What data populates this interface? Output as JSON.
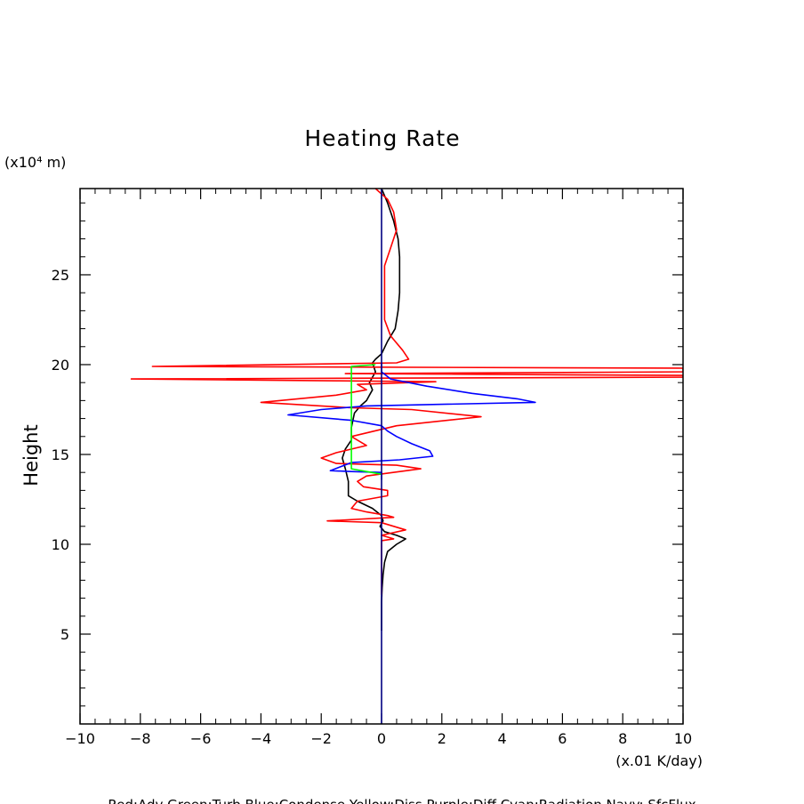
{
  "chart_data": {
    "type": "line",
    "title": "Heating Rate",
    "xlabel": "(x.01 K/day)",
    "ylabel": "Height",
    "yunit_label": "(x10⁴ m)",
    "xlim": [
      -10,
      10
    ],
    "ylim": [
      0,
      29.8
    ],
    "xticks": [
      -10,
      -8,
      -6,
      -4,
      -2,
      0,
      2,
      4,
      6,
      8,
      10
    ],
    "yticks": [
      5,
      10,
      15,
      20,
      25
    ],
    "footer": "Red:Adv  Green:Turb  Blue:Condense  Yellow:Diss  Purple:Diff  Cyan:Radiation  Navy: SfcFlux",
    "series": [
      {
        "name": "Black",
        "color": "#000000",
        "points": [
          [
            0.0,
            29.8
          ],
          [
            0.2,
            29.0
          ],
          [
            0.4,
            28.0
          ],
          [
            0.55,
            27.0
          ],
          [
            0.6,
            26.0
          ],
          [
            0.6,
            25.0
          ],
          [
            0.6,
            24.0
          ],
          [
            0.55,
            23.0
          ],
          [
            0.45,
            22.0
          ],
          [
            0.2,
            21.3
          ],
          [
            0.0,
            20.6
          ],
          [
            -0.2,
            20.3
          ],
          [
            -0.3,
            20.1
          ],
          [
            -0.2,
            19.6
          ],
          [
            -0.3,
            19.3
          ],
          [
            -0.4,
            19.0
          ],
          [
            -0.3,
            18.6
          ],
          [
            -0.4,
            18.3
          ],
          [
            -0.5,
            18.0
          ],
          [
            -0.7,
            17.7
          ],
          [
            -0.9,
            17.3
          ],
          [
            -1.0,
            16.5
          ],
          [
            -1.0,
            15.8
          ],
          [
            -1.2,
            15.3
          ],
          [
            -1.3,
            14.8
          ],
          [
            -1.2,
            14.2
          ],
          [
            -1.1,
            13.5
          ],
          [
            -1.1,
            12.7
          ],
          [
            -0.8,
            12.4
          ],
          [
            -0.3,
            12.0
          ],
          [
            0.0,
            11.6
          ],
          [
            0.05,
            11.3
          ],
          [
            -0.05,
            11.0
          ],
          [
            0.1,
            10.7
          ],
          [
            0.5,
            10.5
          ],
          [
            0.8,
            10.3
          ],
          [
            0.5,
            10.0
          ],
          [
            0.2,
            9.6
          ],
          [
            0.1,
            9.0
          ],
          [
            0.05,
            8.3
          ],
          [
            0.02,
            7.6
          ],
          [
            0.0,
            6.8
          ],
          [
            0.0,
            6.0
          ],
          [
            0.0,
            5.2
          ]
        ]
      },
      {
        "name": "Red",
        "color": "#ff0000",
        "points": [
          [
            -0.2,
            29.8
          ],
          [
            0.2,
            29.2
          ],
          [
            0.4,
            28.5
          ],
          [
            0.5,
            27.5
          ],
          [
            0.3,
            26.5
          ],
          [
            0.1,
            25.5
          ],
          [
            0.1,
            24.5
          ],
          [
            0.1,
            23.5
          ],
          [
            0.1,
            22.5
          ],
          [
            0.3,
            21.6
          ],
          [
            0.7,
            20.8
          ],
          [
            0.9,
            20.3
          ],
          [
            0.5,
            20.1
          ],
          [
            -7.6,
            19.9
          ],
          [
            10,
            19.8
          ],
          [
            10,
            19.6
          ],
          [
            -1.2,
            19.5
          ],
          [
            10,
            19.4
          ],
          [
            10,
            19.3
          ],
          [
            -8.3,
            19.2
          ],
          [
            -1.5,
            19.1
          ],
          [
            1.8,
            19.05
          ],
          [
            -0.8,
            18.9
          ],
          [
            -0.5,
            18.6
          ],
          [
            -1.5,
            18.3
          ],
          [
            -4.0,
            17.9
          ],
          [
            -1.0,
            17.6
          ],
          [
            1.0,
            17.5
          ],
          [
            3.3,
            17.1
          ],
          [
            0.5,
            16.6
          ],
          [
            -1.0,
            16.0
          ],
          [
            -0.5,
            15.5
          ],
          [
            -1.5,
            15.1
          ],
          [
            -2.0,
            14.8
          ],
          [
            -1.5,
            14.5
          ],
          [
            0.5,
            14.4
          ],
          [
            1.3,
            14.2
          ],
          [
            -0.5,
            13.8
          ],
          [
            -0.8,
            13.5
          ],
          [
            -0.6,
            13.2
          ],
          [
            0.2,
            13.0
          ],
          [
            0.2,
            12.7
          ],
          [
            -0.8,
            12.4
          ],
          [
            -1.0,
            12.0
          ],
          [
            -0.5,
            11.8
          ],
          [
            0.2,
            11.6
          ],
          [
            0.4,
            11.5
          ],
          [
            -1.8,
            11.3
          ],
          [
            0.0,
            11.2
          ],
          [
            0.8,
            10.8
          ],
          [
            0.0,
            10.5
          ],
          [
            0.4,
            10.3
          ],
          [
            0.0,
            10.2
          ],
          [
            0.0,
            9.2
          ],
          [
            0.0,
            8.2
          ],
          [
            0.0,
            7.2
          ]
        ]
      },
      {
        "name": "Blue",
        "color": "#0000ff",
        "points": [
          [
            0.0,
            20.1
          ],
          [
            0.0,
            19.6
          ],
          [
            0.3,
            19.2
          ],
          [
            1.5,
            18.8
          ],
          [
            3.0,
            18.4
          ],
          [
            4.5,
            18.1
          ],
          [
            5.1,
            17.9
          ],
          [
            -0.5,
            17.7
          ],
          [
            -2.0,
            17.5
          ],
          [
            -3.1,
            17.2
          ],
          [
            -1.0,
            16.9
          ],
          [
            0.0,
            16.6
          ],
          [
            0.2,
            16.3
          ],
          [
            0.5,
            16.0
          ],
          [
            1.0,
            15.6
          ],
          [
            1.6,
            15.2
          ],
          [
            1.7,
            14.9
          ],
          [
            0.6,
            14.7
          ],
          [
            -1.0,
            14.55
          ],
          [
            -1.7,
            14.1
          ],
          [
            -1.0,
            14.05
          ],
          [
            0.0,
            14.0
          ],
          [
            0.0,
            13.6
          ]
        ]
      },
      {
        "name": "Green",
        "color": "#00ff00",
        "points": [
          [
            -0.2,
            20.0
          ],
          [
            -0.6,
            19.95
          ],
          [
            -1.0,
            19.9
          ],
          [
            -1.0,
            19.5
          ],
          [
            -1.0,
            14.2
          ],
          [
            -0.5,
            14.05
          ],
          [
            0.0,
            13.9
          ]
        ]
      },
      {
        "name": "Navy",
        "color": "#000080",
        "points": [
          [
            0,
            0
          ],
          [
            0,
            29.8
          ]
        ]
      }
    ]
  }
}
